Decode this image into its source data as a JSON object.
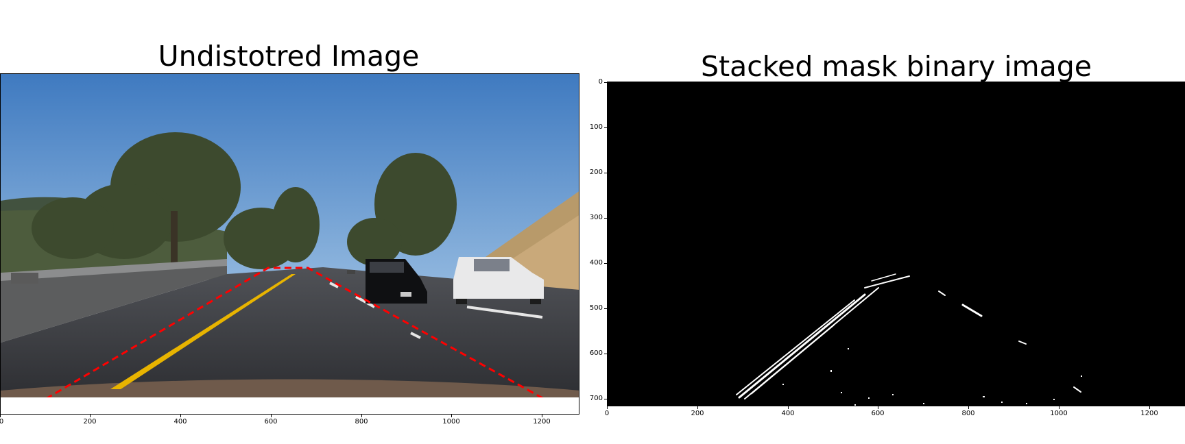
{
  "left_panel": {
    "title": "Undistotred Image",
    "x_ticks": [
      "0",
      "200",
      "400",
      "600",
      "800",
      "1000",
      "1200"
    ]
  },
  "right_panel": {
    "title": "Stacked mask binary image",
    "x_ticks": [
      "0",
      "200",
      "400",
      "600",
      "800",
      "1000",
      "1200"
    ],
    "y_ticks": [
      "0",
      "100",
      "200",
      "300",
      "400",
      "500",
      "600",
      "700"
    ]
  },
  "colors": {
    "sky": "#5b8fc9",
    "road": "#3a3b3f",
    "lane_yellow": "#e8b400",
    "region_outline": "#ff0000",
    "mask_background": "#000000",
    "mask_lines": "#ffffff"
  }
}
